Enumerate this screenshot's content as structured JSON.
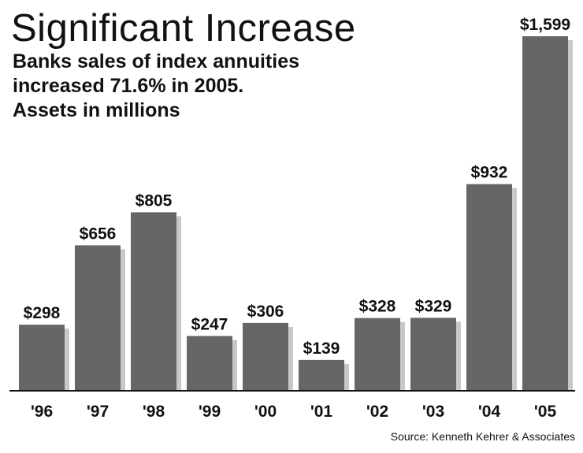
{
  "chart_data": {
    "type": "bar",
    "title": "Significant Increase",
    "subtitle_lines": [
      "Banks sales of index annuities",
      "increased 71.6% in 2005.",
      "Assets in millions"
    ],
    "categories": [
      "'96",
      "'97",
      "'98",
      "'99",
      "'00",
      "'01",
      "'02",
      "'03",
      "'04",
      "'05"
    ],
    "values": [
      298,
      656,
      805,
      247,
      306,
      139,
      328,
      329,
      932,
      1599
    ],
    "value_labels": [
      "$298",
      "$656",
      "$805",
      "$247",
      "$306",
      "$139",
      "$328",
      "$329",
      "$932",
      "$1,599"
    ],
    "ylim": [
      0,
      1599
    ],
    "grid": false,
    "legend": "none",
    "bar_color": "#666666",
    "shadow_color": "#c8c8c8",
    "source": "Source: Kenneth Kehrer & Associates"
  }
}
